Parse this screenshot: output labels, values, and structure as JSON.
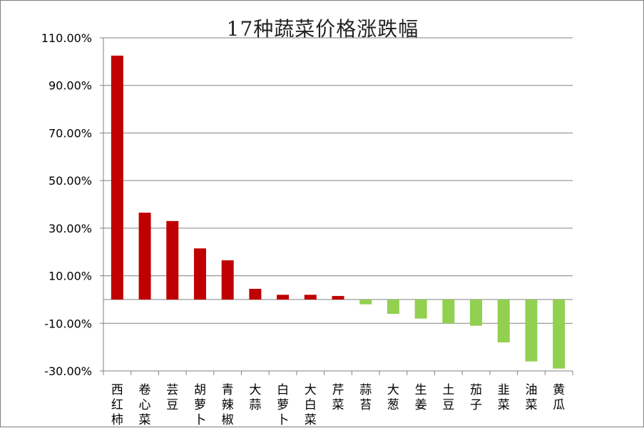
{
  "chart_data": {
    "type": "bar",
    "title": "17种蔬菜价格涨跌幅",
    "xlabel": "",
    "ylabel": "",
    "ylim": [
      -30,
      110
    ],
    "yticks": [
      -30,
      -10,
      10,
      30,
      50,
      70,
      90,
      110
    ],
    "ytick_labels": [
      "-30.00%",
      "-10.00%",
      "10.00%",
      "30.00%",
      "50.00%",
      "70.00%",
      "90.00%",
      "110.00%"
    ],
    "grid": true,
    "legend": "none",
    "categories": [
      "西红柿",
      "卷心菜",
      "芸豆",
      "胡萝卜",
      "青辣椒",
      "大蒜",
      "白萝卜",
      "大白菜",
      "芹菜",
      "蒜苔",
      "大葱",
      "生姜",
      "土豆",
      "茄子",
      "韭菜",
      "油菜",
      "黄瓜"
    ],
    "values": [
      102.5,
      36.5,
      33.0,
      21.5,
      16.5,
      4.5,
      2.0,
      2.0,
      1.5,
      -2.0,
      -6.0,
      -8.0,
      -10.0,
      -11.0,
      -18.0,
      -26.0,
      -29.0
    ],
    "colors": {
      "positive": "#c00000",
      "negative": "#92d050",
      "grid": "#808080",
      "axis": "#808080"
    }
  }
}
